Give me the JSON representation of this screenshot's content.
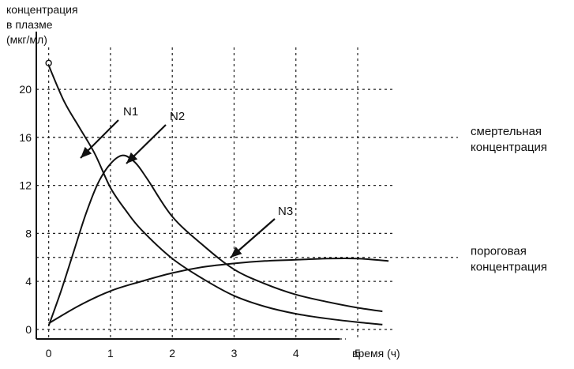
{
  "chart_data": {
    "type": "line",
    "title": "",
    "ylabel_lines": [
      "концентрация",
      "в плазме",
      "(мкг/мл)"
    ],
    "xlabel": "время (ч)",
    "xlim": [
      -0.2,
      5.6
    ],
    "ylim": [
      -0.8,
      23.5
    ],
    "x_ticks": [
      0,
      1,
      2,
      3,
      4,
      5
    ],
    "y_ticks": [
      0,
      4,
      8,
      12,
      16,
      20
    ],
    "grid": true,
    "series": [
      {
        "name": "N1",
        "x": [
          0.0,
          0.25,
          0.5,
          0.75,
          1.0,
          1.25,
          1.5,
          2.0,
          2.5,
          3.0,
          3.5,
          4.0,
          4.5,
          5.0,
          5.4
        ],
        "y": [
          22.0,
          19.0,
          16.8,
          14.6,
          11.8,
          9.9,
          8.3,
          5.9,
          4.2,
          2.8,
          1.9,
          1.3,
          0.9,
          0.6,
          0.4
        ]
      },
      {
        "name": "N2",
        "x": [
          0.0,
          0.2,
          0.4,
          0.6,
          0.8,
          1.0,
          1.2,
          1.4,
          1.6,
          2.0,
          2.5,
          3.0,
          3.5,
          4.0,
          4.5,
          5.0,
          5.4
        ],
        "y": [
          0.3,
          3.2,
          6.4,
          9.6,
          12.2,
          13.8,
          14.5,
          13.9,
          12.5,
          9.4,
          7.0,
          5.0,
          3.8,
          2.9,
          2.3,
          1.8,
          1.5
        ]
      },
      {
        "name": "N3",
        "x": [
          0.0,
          0.5,
          1.0,
          1.5,
          2.0,
          2.5,
          3.0,
          3.5,
          4.0,
          4.5,
          5.0,
          5.5
        ],
        "y": [
          0.5,
          2.0,
          3.2,
          4.0,
          4.7,
          5.2,
          5.5,
          5.7,
          5.8,
          5.9,
          5.9,
          5.7
        ]
      }
    ],
    "reference_lines": [
      {
        "label_lines": [
          "смертельная",
          "концентрация"
        ],
        "y": 16
      },
      {
        "label_lines": [
          "пороговая",
          "концентрация"
        ],
        "y": 6
      }
    ],
    "start_marker": {
      "label": "o",
      "x": 0,
      "y": 22
    }
  }
}
